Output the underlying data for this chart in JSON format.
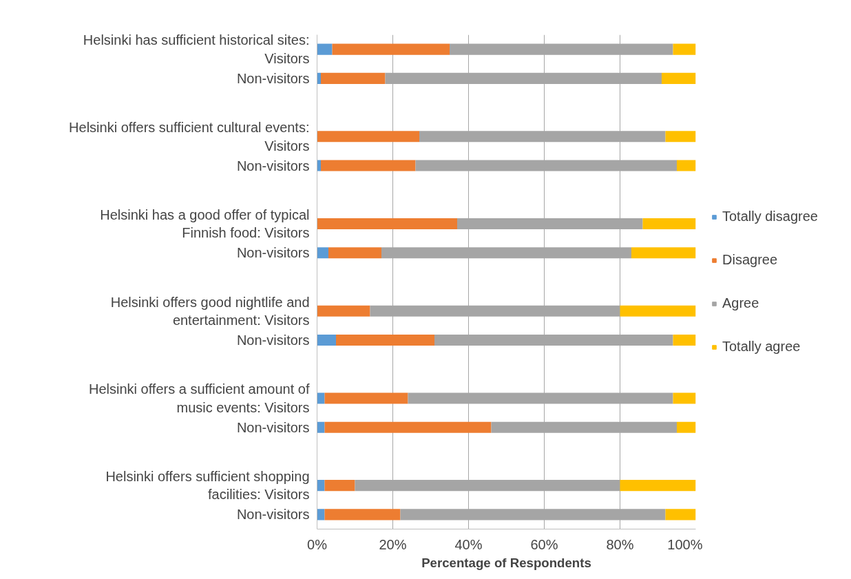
{
  "chart_data": {
    "type": "bar",
    "orientation": "horizontal",
    "stacked": true,
    "xlabel": "Percentage of Respondents",
    "categories": [
      "Helsinki has sufficient historical sites: Visitors",
      "Non-visitors",
      null,
      "Helsinki offers sufficient cultural events: Visitors",
      "Non-visitors",
      null,
      "Helsinki has a good offer of typical Finnish food: Visitors",
      "Non-visitors",
      null,
      "Helsinki offers good nightlife and entertainment: Visitors",
      "Non-visitors",
      null,
      "Helsinki offers a sufficient amount of music events: Visitors",
      "Non-visitors",
      null,
      "Helsinki offers sufficient shopping facilities: Visitors",
      "Non-visitors"
    ],
    "series": [
      {
        "name": "Totally disagree",
        "color": "#5b9bd5",
        "values": [
          4,
          1,
          null,
          0,
          1,
          null,
          0,
          3,
          null,
          0,
          5,
          null,
          2,
          2,
          null,
          2,
          2
        ]
      },
      {
        "name": "Disagree",
        "color": "#ed7d31",
        "values": [
          31,
          17,
          null,
          27,
          25,
          null,
          37,
          14,
          null,
          14,
          26,
          null,
          22,
          44,
          null,
          8,
          20
        ]
      },
      {
        "name": "Agree",
        "color": "#a5a5a5",
        "values": [
          59,
          73,
          null,
          65,
          69,
          null,
          49,
          66,
          null,
          66,
          63,
          null,
          70,
          49,
          null,
          70,
          70
        ]
      },
      {
        "name": "Totally agree",
        "color": "#ffc000",
        "values": [
          6,
          9,
          null,
          8,
          5,
          null,
          14,
          17,
          null,
          20,
          6,
          null,
          6,
          5,
          null,
          20,
          8
        ]
      }
    ],
    "xlim": [
      0,
      100
    ],
    "xticks": [
      {
        "value": 0,
        "label": "0%"
      },
      {
        "value": 20,
        "label": "20%"
      },
      {
        "value": 40,
        "label": "40%"
      },
      {
        "value": 60,
        "label": "60%"
      },
      {
        "value": 80,
        "label": "80%"
      },
      {
        "value": 100,
        "label": "100%"
      }
    ],
    "grid": "x",
    "legend": "right"
  }
}
